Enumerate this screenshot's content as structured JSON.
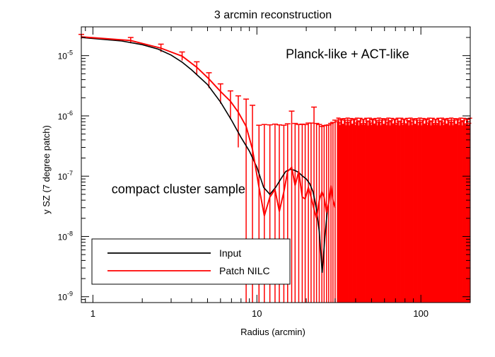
{
  "chart_data": {
    "type": "line",
    "title": "3 arcmin reconstruction",
    "xlabel": "Radius (arcmin)",
    "ylabel": "y SZ (7 degree patch)",
    "xscale": "log",
    "yscale": "log",
    "xlim": [
      0.85,
      200
    ],
    "ylim": [
      8e-10,
      3e-05
    ],
    "x_ticks": [
      1,
      10,
      100
    ],
    "x_tick_labels": [
      "1",
      "10",
      "100"
    ],
    "y_ticks": [
      1e-09,
      1e-08,
      1e-07,
      1e-06,
      1e-05
    ],
    "y_tick_labels": [
      {
        "base": "10",
        "exp": "-9"
      },
      {
        "base": "10",
        "exp": "-8"
      },
      {
        "base": "10",
        "exp": "-7"
      },
      {
        "base": "10",
        "exp": "-6"
      },
      {
        "base": "10",
        "exp": "-5"
      }
    ],
    "annotations": [
      {
        "text": "Planck-like + ACT-like",
        "x": 15,
        "y": 9e-06
      },
      {
        "text": "compact cluster sample",
        "x": 1.3,
        "y": 5.2e-08
      }
    ],
    "legend": {
      "placement": "bottom-left",
      "entries": [
        {
          "label": "Input",
          "color": "#000000"
        },
        {
          "label": "Patch NILC",
          "color": "#ff0000"
        }
      ]
    },
    "series": [
      {
        "name": "Input",
        "color": "#000000",
        "x": [
          0.85,
          1,
          1.5,
          2,
          2.5,
          3,
          3.5,
          4,
          5,
          6,
          7,
          8,
          9,
          10,
          11,
          12,
          13,
          14,
          15,
          16,
          17,
          18,
          19,
          20,
          21,
          22,
          23,
          24,
          25,
          26,
          27
        ],
        "y": [
          2e-05,
          1.92e-05,
          1.75e-05,
          1.52e-05,
          1.28e-05,
          1.02e-05,
          7.8e-06,
          5.8e-06,
          3.3e-06,
          1.7e-06,
          8.5e-07,
          4.4e-07,
          2.6e-07,
          1.4e-07,
          6.5e-08,
          5e-08,
          6.5e-08,
          9e-08,
          1.2e-07,
          1.3e-07,
          1.25e-07,
          1.15e-07,
          1e-07,
          9e-08,
          7.5e-08,
          5.5e-08,
          3e-08,
          1.2e-08,
          2.5e-09,
          1e-08,
          3e-08
        ]
      },
      {
        "name": "Patch NILC",
        "color": "#ff0000",
        "x": [
          0.85,
          1.7,
          2.6,
          3.5,
          4.3,
          5.1,
          6,
          6.9,
          7.7,
          8.6,
          9.4,
          10.3,
          11.1,
          12,
          12.9,
          13.7,
          14.6,
          15.4,
          16.3,
          17.1,
          18,
          18.9,
          19.7,
          20.6,
          21.4,
          22.3,
          23.1,
          24,
          24.9,
          25.7,
          26.6,
          27.4,
          28.3,
          29.1,
          30
        ],
        "y": [
          2.05e-05,
          1.78e-05,
          1.33e-05,
          9.8e-06,
          6.4e-06,
          4.1e-06,
          2.55e-06,
          1.75e-06,
          1.15e-06,
          6.7e-07,
          2.8e-07,
          6.5e-08,
          2.2e-08,
          4.5e-08,
          6e-08,
          2.6e-08,
          5.5e-08,
          1.2e-07,
          1.4e-07,
          7e-08,
          1.2e-07,
          4.5e-08,
          4.2e-08,
          6.5e-08,
          4.5e-08,
          2.8e-08,
          2e-08,
          4e-08,
          5.5e-08,
          4.5e-08,
          2.5e-08,
          3.5e-08,
          7e-08,
          4e-08,
          3e-08
        ]
      }
    ],
    "error_bars": {
      "series": "Patch NILC",
      "color": "#ff0000",
      "x": [
        0.85,
        1.7,
        2.6,
        3.5,
        4.3,
        5.1,
        6,
        6.9,
        7.7,
        8.6,
        9.4,
        10.3,
        11.1,
        12,
        12.9,
        13.7,
        14.6,
        15.4,
        16.3,
        17.1,
        18,
        18.9,
        19.7,
        20.6,
        21.4,
        22.3,
        23.1,
        24,
        24.9,
        25.7,
        26.6,
        27.4,
        28.3,
        29.1,
        30
      ],
      "upper": [
        2.25e-05,
        2e-05,
        1.55e-05,
        1.15e-05,
        7.9e-06,
        5.2e-06,
        3.4e-06,
        2.6e-06,
        2.15e-06,
        1.9e-06,
        1.5e-06,
        7e-07,
        7.2e-07,
        7.1e-07,
        7.3e-07,
        7.1e-07,
        7e-07,
        7.4e-07,
        1.2e-06,
        7.5e-07,
        7.2e-07,
        7.3e-07,
        7.2e-07,
        7.6e-07,
        7.6e-07,
        1.4e-06,
        7.5e-07,
        7.2e-07,
        6.7e-07,
        6.9e-07,
        7e-07,
        7.1e-07,
        7.5e-07,
        7.8e-07,
        8.5e-07
      ],
      "lower": [
        1.9e-05,
        1.6e-05,
        1.15e-05,
        8.3e-06,
        4.9e-06,
        2.9e-06,
        1.6e-06,
        8.8e-07,
        3e-07,
        8e-10,
        8e-10,
        8e-10,
        8e-10,
        8e-10,
        8e-10,
        8e-10,
        8e-10,
        8e-10,
        8e-10,
        8e-10,
        8e-10,
        8e-10,
        8e-10,
        8e-10,
        8e-10,
        8e-10,
        8e-10,
        8e-10,
        8e-10,
        8e-10,
        8e-10,
        8e-10,
        8e-10,
        8e-10,
        8e-10
      ],
      "dense_range": {
        "x_start": 31,
        "x_end": 200,
        "upper": 8e-07,
        "lower": 8e-10
      }
    }
  }
}
